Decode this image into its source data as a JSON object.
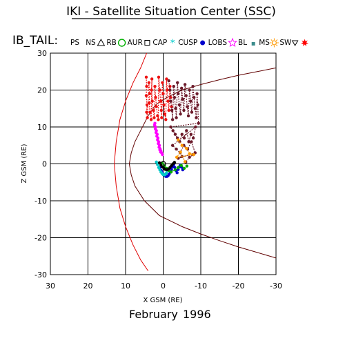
{
  "header": {
    "title": "IKI - Satellite Situation Center (SSC)"
  },
  "legend": {
    "label": "IB_TAIL:",
    "items": [
      {
        "text": "PS",
        "icon": "none-icon",
        "color": "#000000"
      },
      {
        "text": "NS",
        "icon": "triangle-icon",
        "color": "#000000"
      },
      {
        "text": "RB",
        "icon": "circle-icon",
        "color": "#00b000"
      },
      {
        "text": "AUR",
        "icon": "square-icon",
        "color": "#000000"
      },
      {
        "text": "CAP",
        "icon": "asterisk-icon",
        "color": "#00cccc"
      },
      {
        "text": "CUSP",
        "icon": "filled-circle-icon",
        "color": "#0000cc"
      },
      {
        "text": "LOBS",
        "icon": "star-icon",
        "color": "#ff00ff"
      },
      {
        "text": "BL",
        "icon": "small-square-icon",
        "color": "#3c8c8c"
      },
      {
        "text": "MS",
        "icon": "sun-icon",
        "color": "#ff9900"
      },
      {
        "text": "SW",
        "icon": "down-triangle-icon",
        "color": "#000000"
      },
      {
        "text": "",
        "icon": "red-star-icon",
        "color": "#ff0000"
      }
    ]
  },
  "footer": {
    "month": "February",
    "year": "1996"
  },
  "chart_data": {
    "type": "scatter",
    "xlabel": "X GSM (RE)",
    "ylabel": "Z GSM (RE)",
    "xlim": [
      30,
      -30
    ],
    "ylim": [
      -30,
      30
    ],
    "x_ticks": [
      30,
      20,
      10,
      0,
      -10,
      -20,
      -30
    ],
    "x_tick_labels": [
      "30",
      "20",
      "10",
      "0",
      "-10",
      "-20",
      "-30"
    ],
    "y_ticks": [
      30,
      20,
      10,
      0,
      -10,
      -20,
      -30
    ],
    "y_tick_labels": [
      "30",
      "20",
      "10",
      "0",
      "-10",
      "-20",
      "-30"
    ],
    "grid": true,
    "boundaries": [
      {
        "name": "",
        "color": "#e00000",
        "points": [
          [
            4,
            31
          ],
          [
            6,
            26
          ],
          [
            8,
            22
          ],
          [
            10,
            17
          ],
          [
            11.5,
            12
          ],
          [
            12.5,
            6
          ],
          [
            13,
            0
          ],
          [
            12.5,
            -6
          ],
          [
            11.5,
            -12
          ],
          [
            10,
            -17
          ],
          [
            8,
            -22
          ],
          [
            6,
            -26
          ],
          [
            4,
            -29
          ]
        ]
      },
      {
        "name": "",
        "color": "#600000",
        "points": [
          [
            2,
            16
          ],
          [
            4,
            13
          ],
          [
            6,
            9
          ],
          [
            7.5,
            6
          ],
          [
            8.5,
            3
          ],
          [
            9,
            0
          ],
          [
            8.5,
            -3
          ],
          [
            7.5,
            -6
          ],
          [
            5,
            -10
          ],
          [
            1,
            -14
          ],
          [
            -5,
            -17
          ],
          [
            -10,
            -19
          ],
          [
            -15,
            -20.8
          ],
          [
            -20,
            -22.5
          ],
          [
            -25,
            -24
          ],
          [
            -30,
            -25.5
          ]
        ]
      },
      {
        "name": "",
        "color": "#600000",
        "points": [
          [
            2,
            16
          ],
          [
            -1,
            18
          ],
          [
            -5,
            20
          ],
          [
            -10,
            21.5
          ],
          [
            -15,
            22.8
          ],
          [
            -20,
            24
          ],
          [
            -25,
            25
          ],
          [
            -30,
            26
          ]
        ]
      }
    ],
    "series": [
      {
        "name": "",
        "color": "#ee1111",
        "x": [
          4.5,
          4.4,
          4.5,
          4.3,
          4.4,
          4.2,
          3.8,
          3.6,
          3.7,
          3.5,
          3.2,
          3.0,
          3.1,
          2.9,
          2.6,
          2.4,
          2.2,
          2.0,
          1.8,
          1.5,
          1.3,
          1.2,
          0.9,
          0.7,
          0.5,
          0.4,
          0.2,
          0.0,
          -0.2,
          -0.4,
          -0.7,
          -0.9,
          -1.1,
          -1.3,
          -1.5,
          -1.8,
          -2.0,
          -2.2
        ],
        "y": [
          23.5,
          21,
          18.5,
          16,
          14,
          12.5,
          22,
          19,
          16.5,
          14,
          12,
          23,
          20,
          17,
          14.5,
          12.5,
          21,
          18,
          15.5,
          13,
          12,
          23.5,
          20,
          17,
          14.5,
          12.5,
          22,
          19,
          16,
          13.5,
          12,
          23,
          20,
          17,
          14.5,
          21,
          18,
          15.5
        ]
      },
      {
        "name": "",
        "color": "#6b1a2a",
        "x": [
          -1.5,
          -1.8,
          -2.0,
          -2.3,
          -2.5,
          -2.8,
          -3.0,
          -3.3,
          -3.5,
          -3.8,
          -4.0,
          -4.3,
          -4.6,
          -4.9,
          -5.2,
          -5.5,
          -5.8,
          -6.1,
          -6.4,
          -6.7,
          -7.0,
          -7.3,
          -7.6,
          -7.9,
          -8.2,
          -8.5,
          -8.8,
          -9.0,
          -9.2,
          -9.4,
          -2.0,
          -2.6,
          -3.2,
          -3.8,
          -4.4,
          -5.0,
          -5.6,
          -6.2,
          -6.8,
          -7.4,
          -8.0,
          -8.6,
          -2.5,
          -3.5,
          -4.5,
          -5.5,
          -6.5,
          -7.5,
          -8.5,
          -4.0,
          -5.0,
          -6.0,
          -7.0,
          -8.0
        ],
        "y": [
          22.5,
          20,
          17,
          14.5,
          12,
          21,
          18,
          15,
          12.5,
          22,
          19,
          16,
          13.5,
          20.5,
          17.5,
          14.5,
          21.5,
          18.5,
          15.5,
          13,
          20,
          17,
          14,
          21,
          18,
          15,
          12.5,
          19,
          16,
          11,
          10,
          9,
          8,
          7,
          6,
          8,
          7,
          9,
          6,
          8,
          7,
          10,
          5,
          4,
          3,
          5,
          4,
          6,
          3,
          1.5,
          2,
          0.5,
          1.8,
          2.5
        ]
      },
      {
        "name": "",
        "color": "#ff00ff",
        "x": [
          2.2,
          2.0,
          1.8,
          1.6,
          1.4,
          1.2,
          1.0,
          0.8,
          0.6,
          0.4,
          0.2,
          2.3,
          2.1,
          1.9,
          1.7,
          1.5,
          1.3,
          1.1,
          0.9,
          0.7
        ],
        "y": [
          11,
          10,
          9,
          8,
          7,
          6,
          5,
          4,
          3.5,
          3,
          2.5,
          10.5,
          9.5,
          8.5,
          7.5,
          6.5,
          5.5,
          4.5,
          3.8,
          3.2
        ]
      },
      {
        "name": "",
        "color": "#0000cc",
        "x": [
          0.8,
          0.5,
          0.2,
          -0.1,
          -0.4,
          -0.7,
          -1.0,
          -1.3,
          -1.6,
          -1.9,
          -2.2,
          -2.5,
          -2.8,
          -3.1,
          -3.4,
          -3.7,
          -4.0,
          -4.3,
          -4.6,
          -4.9,
          -5.2
        ],
        "y": [
          -1.0,
          -1.8,
          -2.4,
          -2.9,
          -3.2,
          -3.4,
          -3.4,
          -3.2,
          -2.8,
          -2.2,
          -1.5,
          -0.8,
          -0.2,
          -1.0,
          -1.8,
          -2.4,
          -1.5,
          -0.8,
          -0.3,
          -0.9,
          -1.6
        ]
      },
      {
        "name": "",
        "color": "#00c8c8",
        "x": [
          1.8,
          1.5,
          1.2,
          0.9,
          0.6,
          0.3,
          0.0,
          -0.3,
          -0.6,
          -0.9
        ],
        "y": [
          0.5,
          -0.2,
          -1.0,
          -1.6,
          -2.2,
          -2.6,
          -2.9,
          -3.0,
          -2.8,
          -2.4
        ]
      },
      {
        "name": "",
        "color": "#00aa00",
        "x": [
          0.3,
          -0.3,
          -0.9,
          -1.5,
          -2.1,
          -3.2,
          -4.0,
          -4.8,
          -5.6,
          -6.3
        ],
        "y": [
          0.2,
          -0.5,
          -1.2,
          -1.8,
          -2.2,
          -1.6,
          -1.0,
          -0.4,
          -1.2,
          -0.6
        ]
      },
      {
        "name": "",
        "color": "#ff9900",
        "x": [
          -4.0,
          -5.0,
          -6.2,
          -7.0,
          -8.1,
          -3.6,
          -4.6,
          -5.8
        ],
        "y": [
          6.5,
          5.0,
          4.2,
          2.8,
          2.5,
          1.8,
          3.2,
          0.6
        ]
      },
      {
        "name": "",
        "color": "#000000",
        "x": [
          1.0,
          0.6,
          0.2,
          -0.2,
          -0.6,
          -1.0,
          -1.4,
          -1.8,
          -2.2,
          -2.6,
          -3.0
        ],
        "y": [
          0.3,
          -0.3,
          -0.8,
          -1.2,
          -1.5,
          -1.6,
          -1.4,
          -1.0,
          -0.5,
          0.0,
          0.4
        ]
      }
    ]
  }
}
